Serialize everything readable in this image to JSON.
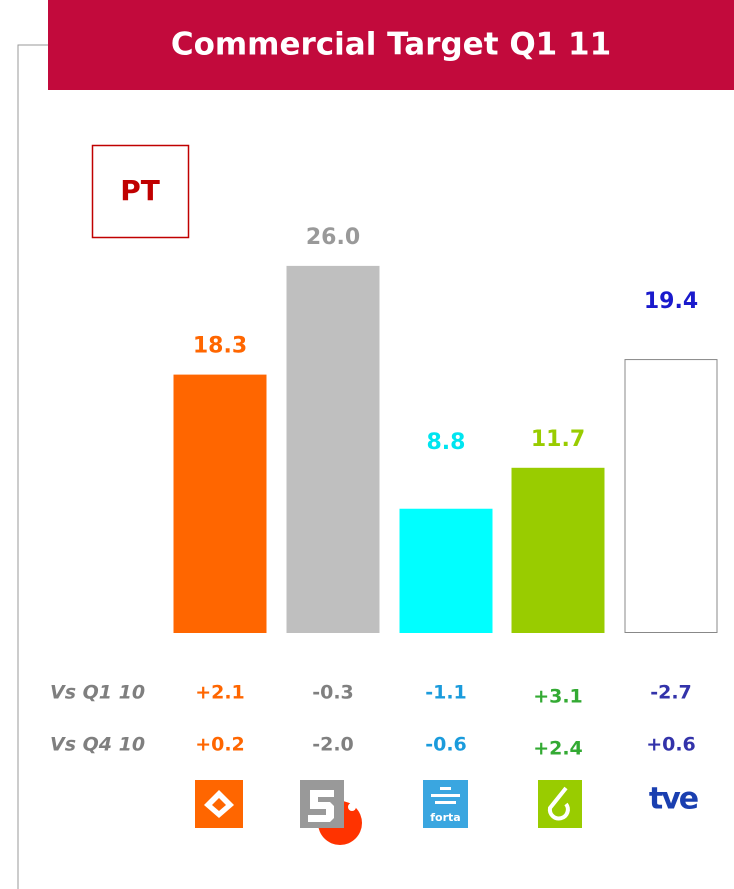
{
  "chart_data": {
    "type": "bar",
    "title": "Commercial Target Q1 11",
    "badge": "PT",
    "categories": [
      null,
      null,
      null,
      null,
      null
    ],
    "values": [
      18.3,
      26.0,
      8.8,
      11.7,
      19.4
    ],
    "value_labels": [
      "18.3",
      "26.0",
      "8.8",
      "11.7",
      "19.4"
    ],
    "colors": [
      "#ff6600",
      "#bfbfbf",
      "#00ffff",
      "#99cc00",
      "#ffffff"
    ],
    "label_colors": [
      "#ff6600",
      "#999999",
      "#00e5f0",
      "#99cc00",
      "#1a1acc"
    ],
    "comparisons": [
      {
        "name": "Vs Q1 10",
        "values": [
          2.1,
          -0.3,
          -1.1,
          3.1,
          -2.7
        ],
        "value_labels": [
          "+2.1",
          "-0.3",
          "-1.1",
          "+3.1",
          "-2.7"
        ]
      },
      {
        "name": "Vs Q4 10",
        "values": [
          0.2,
          -2.0,
          -0.6,
          2.4,
          0.6
        ],
        "value_labels": [
          "+0.2",
          "-2.0",
          "-0.6",
          "+2.4",
          "+0.6"
        ]
      }
    ],
    "comparison_colors": [
      "#ff6600",
      "#808080",
      "#1a9bdc",
      "#33aa33",
      "#3333aa"
    ],
    "logo_labels": [
      "forta",
      "tve"
    ]
  }
}
